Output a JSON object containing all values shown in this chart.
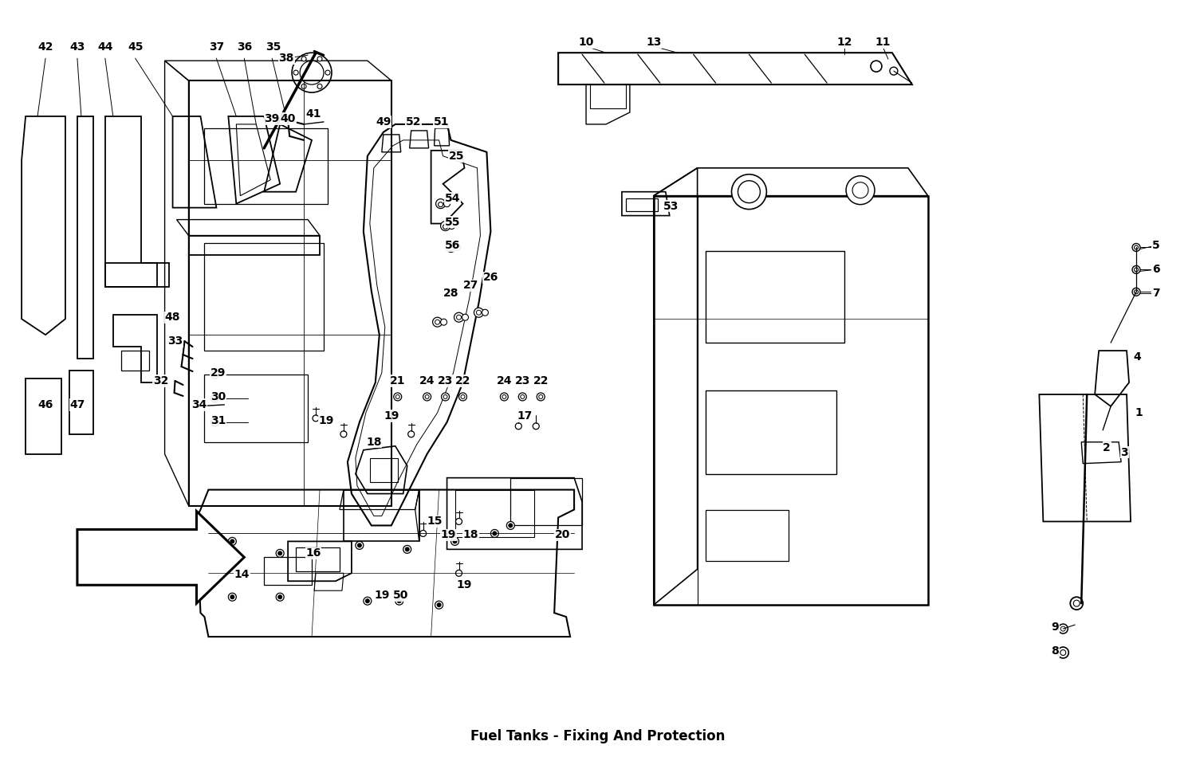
{
  "title": "Fuel Tanks - Fixing And Protection",
  "bg_color": "#ffffff",
  "line_color": "#000000",
  "fig_width": 15.0,
  "fig_height": 9.5,
  "lw_main": 1.3,
  "lw_thin": 0.7,
  "lw_thick": 1.8,
  "label_fs": 10,
  "title_fs": 12
}
